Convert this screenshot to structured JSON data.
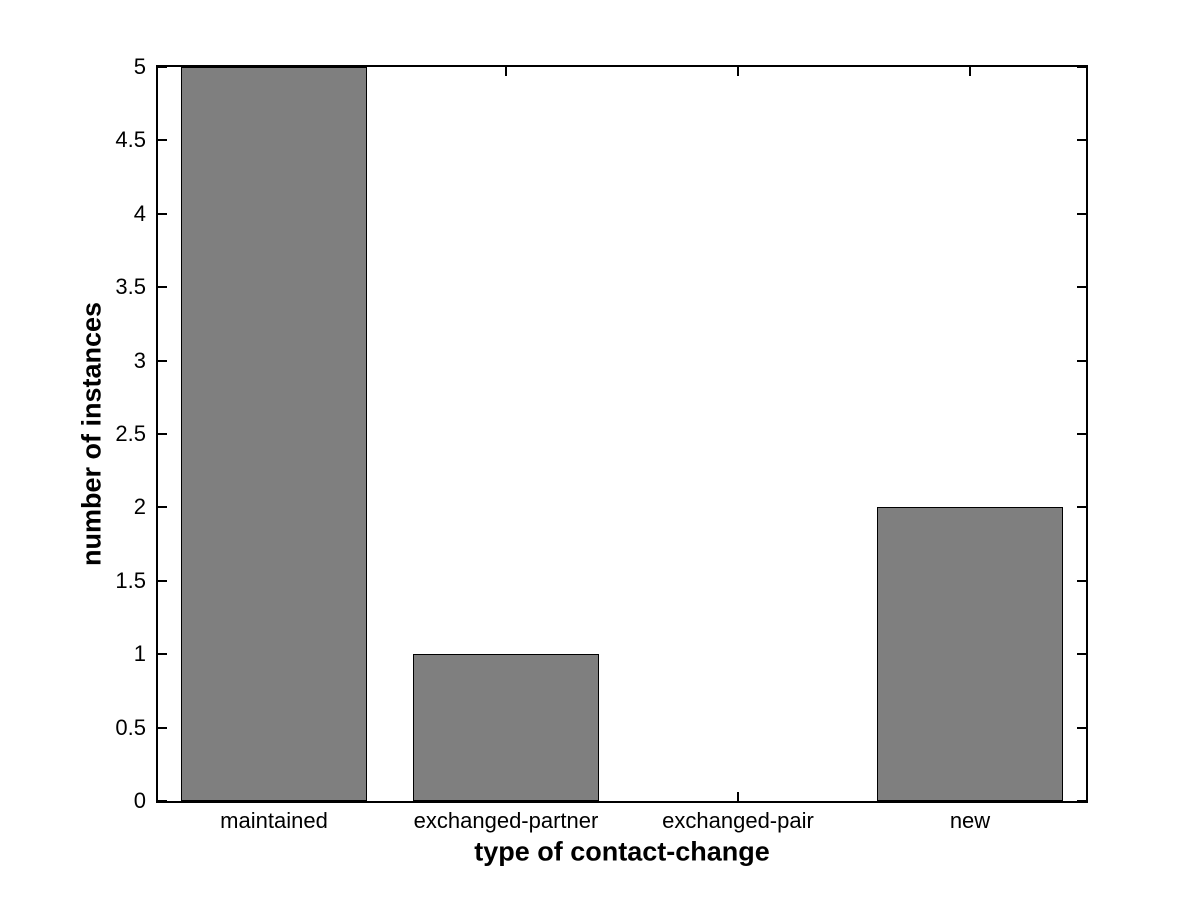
{
  "chart_data": {
    "type": "bar",
    "categories": [
      "maintained",
      "exchanged-partner",
      "exchanged-pair",
      "new"
    ],
    "values": [
      5,
      1,
      0,
      2
    ],
    "title": "",
    "xlabel": "type of contact-change",
    "ylabel": "number of instances",
    "ylim": [
      0,
      5
    ],
    "ytick_step": 0.5,
    "ytick_labels": [
      "0",
      "0.5",
      "1",
      "1.5",
      "2",
      "2.5",
      "3",
      "3.5",
      "4",
      "4.5",
      "5"
    ],
    "bar_width_fraction": 0.8,
    "grid": false,
    "legend": null,
    "colors": {
      "bar_fill": "#7f7f7f",
      "bar_edge": "#000000",
      "axis": "#000000",
      "background": "#ffffff",
      "text": "#000000"
    }
  }
}
